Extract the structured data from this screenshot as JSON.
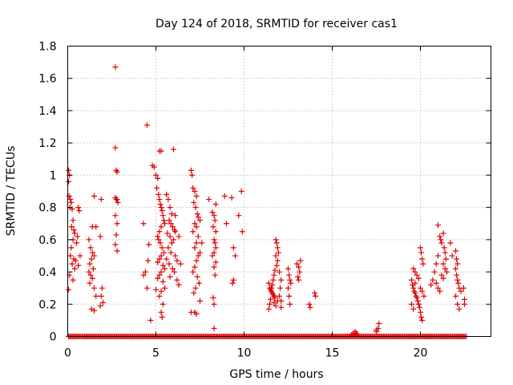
{
  "chart_data": {
    "type": "scatter",
    "title": "Day 124 of 2018, SRMTID for receiver cas1",
    "xlabel": "GPS time / hours",
    "ylabel": "SRMTID / TECUs",
    "xlim": [
      0,
      24
    ],
    "ylim": [
      0,
      1.8
    ],
    "xticks": [
      0,
      5,
      10,
      15,
      20
    ],
    "yticks": [
      0,
      0.2,
      0.4,
      0.6,
      0.8,
      1,
      1.2,
      1.4,
      1.6,
      1.8
    ],
    "ytick_labels": [
      "0",
      "0.2",
      "0.4",
      "0.6",
      "0.8",
      "1",
      "1.2",
      "1.4",
      "1.6",
      "1.8"
    ],
    "marker": "+",
    "color": "#e00000",
    "series": [
      {
        "name": "SRMTID",
        "points": [
          [
            0.05,
            1.03
          ],
          [
            0.1,
            1.0
          ],
          [
            0.05,
            0.96
          ],
          [
            0.08,
            0.87
          ],
          [
            0.15,
            0.85
          ],
          [
            0.2,
            0.83
          ],
          [
            0.12,
            0.8
          ],
          [
            0.25,
            0.79
          ],
          [
            0.3,
            0.72
          ],
          [
            0.22,
            0.68
          ],
          [
            0.35,
            0.66
          ],
          [
            0.4,
            0.64
          ],
          [
            0.3,
            0.6
          ],
          [
            0.2,
            0.55
          ],
          [
            0.15,
            0.5
          ],
          [
            0.35,
            0.48
          ],
          [
            0.25,
            0.45
          ],
          [
            0.4,
            0.42
          ],
          [
            0.1,
            0.38
          ],
          [
            0.3,
            0.35
          ],
          [
            0.05,
            0.29
          ],
          [
            0.6,
            0.8
          ],
          [
            0.65,
            0.78
          ],
          [
            0.55,
            0.62
          ],
          [
            0.5,
            0.58
          ],
          [
            0.7,
            0.5
          ],
          [
            0.45,
            0.47
          ],
          [
            0.6,
            0.44
          ],
          [
            1.2,
            0.6
          ],
          [
            1.3,
            0.55
          ],
          [
            1.4,
            0.52
          ],
          [
            1.5,
            0.5
          ],
          [
            1.35,
            0.48
          ],
          [
            1.25,
            0.45
          ],
          [
            1.45,
            0.42
          ],
          [
            1.2,
            0.4
          ],
          [
            1.3,
            0.38
          ],
          [
            1.4,
            0.36
          ],
          [
            1.25,
            0.33
          ],
          [
            1.5,
            0.3
          ],
          [
            1.35,
            0.17
          ],
          [
            1.5,
            0.16
          ],
          [
            1.5,
            0.87
          ],
          [
            1.6,
            0.68
          ],
          [
            1.4,
            0.68
          ],
          [
            1.6,
            0.25
          ],
          [
            1.9,
            0.85
          ],
          [
            1.85,
            0.62
          ],
          [
            1.95,
            0.3
          ],
          [
            1.9,
            0.25
          ],
          [
            2.0,
            0.21
          ],
          [
            1.85,
            0.19
          ],
          [
            2.7,
            1.67
          ],
          [
            2.7,
            1.17
          ],
          [
            2.75,
            1.03
          ],
          [
            2.8,
            1.02
          ],
          [
            2.7,
            0.86
          ],
          [
            2.75,
            0.85
          ],
          [
            2.8,
            0.85
          ],
          [
            2.85,
            0.83
          ],
          [
            2.7,
            0.75
          ],
          [
            2.8,
            0.7
          ],
          [
            2.75,
            0.63
          ],
          [
            2.7,
            0.57
          ],
          [
            2.8,
            0.53
          ],
          [
            4.3,
            0.7
          ],
          [
            4.5,
            1.31
          ],
          [
            4.6,
            0.57
          ],
          [
            4.55,
            0.47
          ],
          [
            4.4,
            0.4
          ],
          [
            4.3,
            0.38
          ],
          [
            4.5,
            0.3
          ],
          [
            4.7,
            0.1
          ],
          [
            4.8,
            1.06
          ],
          [
            4.9,
            1.05
          ],
          [
            5.0,
            1.0
          ],
          [
            5.1,
            0.98
          ],
          [
            5.2,
            1.15
          ],
          [
            5.3,
            1.15
          ],
          [
            5.05,
            0.92
          ],
          [
            5.15,
            0.88
          ],
          [
            5.2,
            0.85
          ],
          [
            5.25,
            0.82
          ],
          [
            5.3,
            0.8
          ],
          [
            5.35,
            0.78
          ],
          [
            5.4,
            0.75
          ],
          [
            5.45,
            0.72
          ],
          [
            5.5,
            0.7
          ],
          [
            5.3,
            0.68
          ],
          [
            5.2,
            0.65
          ],
          [
            5.1,
            0.62
          ],
          [
            5.15,
            0.6
          ],
          [
            5.25,
            0.58
          ],
          [
            5.35,
            0.55
          ],
          [
            5.45,
            0.52
          ],
          [
            5.3,
            0.5
          ],
          [
            5.2,
            0.48
          ],
          [
            5.1,
            0.46
          ],
          [
            5.4,
            0.44
          ],
          [
            5.5,
            0.42
          ],
          [
            5.3,
            0.4
          ],
          [
            5.2,
            0.38
          ],
          [
            5.1,
            0.36
          ],
          [
            5.4,
            0.34
          ],
          [
            5.5,
            0.3
          ],
          [
            5.3,
            0.28
          ],
          [
            5.2,
            0.25
          ],
          [
            5.4,
            0.2
          ],
          [
            5.3,
            0.15
          ],
          [
            5.35,
            0.12
          ],
          [
            5.0,
            0.29
          ],
          [
            5.6,
            0.88
          ],
          [
            5.7,
            0.85
          ],
          [
            5.8,
            0.8
          ],
          [
            5.9,
            0.76
          ],
          [
            6.0,
            1.16
          ],
          [
            6.1,
            0.75
          ],
          [
            5.75,
            0.72
          ],
          [
            5.85,
            0.7
          ],
          [
            5.95,
            0.68
          ],
          [
            6.05,
            0.66
          ],
          [
            5.65,
            0.64
          ],
          [
            5.8,
            0.62
          ],
          [
            6.0,
            0.6
          ],
          [
            5.9,
            0.58
          ],
          [
            5.7,
            0.55
          ],
          [
            5.85,
            0.52
          ],
          [
            6.1,
            0.5
          ],
          [
            5.6,
            0.48
          ],
          [
            5.75,
            0.45
          ],
          [
            5.95,
            0.42
          ],
          [
            6.05,
            0.4
          ],
          [
            5.8,
            0.37
          ],
          [
            6.2,
            0.35
          ],
          [
            6.3,
            0.32
          ],
          [
            6.1,
            0.65
          ],
          [
            6.3,
            0.62
          ],
          [
            6.2,
            0.47
          ],
          [
            6.4,
            0.45
          ],
          [
            7.0,
            1.03
          ],
          [
            7.05,
            1.0
          ],
          [
            7.1,
            0.92
          ],
          [
            7.2,
            0.9
          ],
          [
            7.3,
            0.87
          ],
          [
            7.15,
            0.83
          ],
          [
            7.25,
            0.8
          ],
          [
            7.35,
            0.76
          ],
          [
            7.4,
            0.74
          ],
          [
            7.5,
            0.72
          ],
          [
            7.2,
            0.7
          ],
          [
            7.3,
            0.68
          ],
          [
            7.1,
            0.65
          ],
          [
            7.4,
            0.62
          ],
          [
            7.3,
            0.58
          ],
          [
            7.2,
            0.55
          ],
          [
            7.5,
            0.52
          ],
          [
            7.4,
            0.5
          ],
          [
            7.3,
            0.47
          ],
          [
            7.2,
            0.43
          ],
          [
            7.1,
            0.4
          ],
          [
            7.35,
            0.37
          ],
          [
            7.45,
            0.33
          ],
          [
            7.25,
            0.3
          ],
          [
            7.15,
            0.27
          ],
          [
            7.5,
            0.22
          ],
          [
            7.2,
            0.15
          ],
          [
            7.3,
            0.14
          ],
          [
            7.0,
            0.15
          ],
          [
            7.6,
            0.58
          ],
          [
            8.0,
            0.85
          ],
          [
            8.2,
            0.77
          ],
          [
            8.3,
            0.75
          ],
          [
            8.35,
            0.72
          ],
          [
            8.25,
            0.68
          ],
          [
            8.4,
            0.65
          ],
          [
            8.3,
            0.6
          ],
          [
            8.35,
            0.58
          ],
          [
            8.4,
            0.55
          ],
          [
            8.3,
            0.52
          ],
          [
            8.2,
            0.5
          ],
          [
            8.4,
            0.46
          ],
          [
            8.3,
            0.43
          ],
          [
            8.35,
            0.38
          ],
          [
            8.4,
            0.82
          ],
          [
            8.25,
            0.24
          ],
          [
            8.3,
            0.2
          ],
          [
            8.3,
            0.05
          ],
          [
            8.9,
            0.87
          ],
          [
            9.0,
            0.7
          ],
          [
            9.3,
            0.86
          ],
          [
            9.4,
            0.55
          ],
          [
            9.4,
            0.35
          ],
          [
            9.35,
            0.33
          ],
          [
            9.5,
            0.5
          ],
          [
            9.7,
            0.75
          ],
          [
            9.85,
            0.9
          ],
          [
            9.9,
            0.65
          ],
          [
            11.4,
            0.33
          ],
          [
            11.45,
            0.3
          ],
          [
            11.5,
            0.29
          ],
          [
            11.55,
            0.28
          ],
          [
            11.6,
            0.27
          ],
          [
            11.65,
            0.26
          ],
          [
            11.7,
            0.25
          ],
          [
            11.75,
            0.24
          ],
          [
            11.8,
            0.6
          ],
          [
            11.85,
            0.58
          ],
          [
            11.9,
            0.55
          ],
          [
            11.95,
            0.52
          ],
          [
            11.8,
            0.5
          ],
          [
            11.9,
            0.47
          ],
          [
            11.85,
            0.44
          ],
          [
            11.75,
            0.41
          ],
          [
            11.7,
            0.38
          ],
          [
            11.65,
            0.35
          ],
          [
            11.6,
            0.32
          ],
          [
            11.55,
            0.3
          ],
          [
            11.5,
            0.23
          ],
          [
            11.45,
            0.2
          ],
          [
            11.4,
            0.17
          ],
          [
            11.7,
            0.21
          ],
          [
            11.8,
            0.19
          ],
          [
            11.9,
            0.22
          ],
          [
            12.0,
            0.25
          ],
          [
            12.1,
            0.22
          ],
          [
            12.0,
            0.4
          ],
          [
            12.1,
            0.35
          ],
          [
            12.05,
            0.3
          ],
          [
            12.1,
            0.18
          ],
          [
            12.5,
            0.42
          ],
          [
            12.55,
            0.38
          ],
          [
            12.6,
            0.35
          ],
          [
            12.65,
            0.33
          ],
          [
            12.5,
            0.3
          ],
          [
            12.55,
            0.25
          ],
          [
            12.6,
            0.2
          ],
          [
            13.0,
            0.45
          ],
          [
            13.1,
            0.43
          ],
          [
            13.2,
            0.47
          ],
          [
            13.15,
            0.4
          ],
          [
            13.05,
            0.37
          ],
          [
            13.1,
            0.35
          ],
          [
            13.7,
            0.2
          ],
          [
            13.75,
            0.18
          ],
          [
            14.0,
            0.27
          ],
          [
            14.05,
            0.25
          ],
          [
            16.1,
            0.01
          ],
          [
            16.2,
            0.02
          ],
          [
            16.3,
            0.03
          ],
          [
            16.4,
            0.01
          ],
          [
            16.35,
            0.02
          ],
          [
            17.5,
            0.04
          ],
          [
            17.6,
            0.05
          ],
          [
            17.65,
            0.08
          ],
          [
            17.5,
            0.03
          ],
          [
            19.5,
            0.35
          ],
          [
            19.55,
            0.32
          ],
          [
            19.6,
            0.3
          ],
          [
            19.65,
            0.28
          ],
          [
            19.7,
            0.27
          ],
          [
            19.75,
            0.25
          ],
          [
            19.8,
            0.24
          ],
          [
            19.85,
            0.22
          ],
          [
            19.9,
            0.2
          ],
          [
            19.95,
            0.18
          ],
          [
            20.0,
            0.15
          ],
          [
            20.05,
            0.12
          ],
          [
            20.1,
            0.1
          ],
          [
            19.6,
            0.42
          ],
          [
            19.7,
            0.4
          ],
          [
            19.8,
            0.38
          ],
          [
            19.9,
            0.36
          ],
          [
            20.0,
            0.55
          ],
          [
            20.05,
            0.52
          ],
          [
            20.1,
            0.48
          ],
          [
            20.15,
            0.45
          ],
          [
            20.0,
            0.3
          ],
          [
            20.1,
            0.28
          ],
          [
            20.2,
            0.25
          ],
          [
            19.5,
            0.2
          ],
          [
            19.6,
            0.17
          ],
          [
            19.7,
            0.33
          ],
          [
            20.6,
            0.32
          ],
          [
            20.7,
            0.35
          ],
          [
            20.8,
            0.4
          ],
          [
            20.9,
            0.45
          ],
          [
            21.0,
            0.5
          ],
          [
            21.0,
            0.69
          ],
          [
            21.1,
            0.62
          ],
          [
            21.15,
            0.6
          ],
          [
            21.2,
            0.58
          ],
          [
            21.3,
            0.64
          ],
          [
            21.35,
            0.55
          ],
          [
            21.4,
            0.52
          ],
          [
            21.45,
            0.48
          ],
          [
            21.3,
            0.45
          ],
          [
            21.4,
            0.42
          ],
          [
            21.5,
            0.4
          ],
          [
            21.2,
            0.38
          ],
          [
            21.3,
            0.36
          ],
          [
            20.9,
            0.33
          ],
          [
            21.0,
            0.3
          ],
          [
            21.1,
            0.28
          ],
          [
            21.7,
            0.58
          ],
          [
            21.8,
            0.5
          ],
          [
            22.0,
            0.53
          ],
          [
            22.05,
            0.48
          ],
          [
            22.1,
            0.45
          ],
          [
            22.0,
            0.42
          ],
          [
            22.05,
            0.38
          ],
          [
            22.1,
            0.35
          ],
          [
            22.15,
            0.33
          ],
          [
            22.2,
            0.3
          ],
          [
            22.3,
            0.28
          ],
          [
            22.0,
            0.25
          ],
          [
            22.1,
            0.2
          ],
          [
            22.2,
            0.17
          ],
          [
            22.45,
            0.3
          ],
          [
            22.5,
            0.23
          ],
          [
            22.5,
            0.2
          ]
        ]
      }
    ],
    "baseline": {
      "y": 0,
      "x_from": 0.05,
      "x_to": 22.6,
      "step": 0.07
    }
  }
}
